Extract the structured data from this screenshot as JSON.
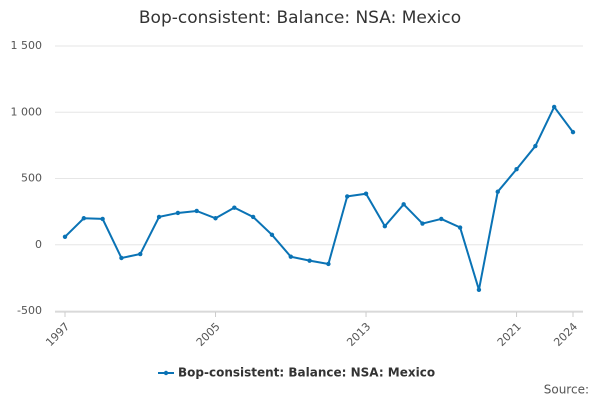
{
  "chart_data": {
    "type": "line",
    "title": "Bop-consistent: Balance: NSA: Mexico",
    "x": [
      1997,
      1998,
      1999,
      2000,
      2001,
      2002,
      2003,
      2004,
      2005,
      2006,
      2007,
      2008,
      2009,
      2010,
      2011,
      2012,
      2013,
      2014,
      2015,
      2016,
      2017,
      2018,
      2019,
      2020,
      2021,
      2022,
      2023,
      2024
    ],
    "series": [
      {
        "name": "Bop-consistent: Balance: NSA: Mexico",
        "color": "#0a73b5",
        "values": [
          60,
          200,
          195,
          -100,
          -70,
          210,
          240,
          255,
          200,
          280,
          210,
          75,
          -90,
          -120,
          -145,
          365,
          385,
          140,
          305,
          160,
          195,
          130,
          -340,
          400,
          570,
          745,
          1040,
          850
        ]
      }
    ],
    "xlim": [
      1997,
      2024
    ],
    "xticks": [
      1997,
      2005,
      2013,
      2021,
      2024
    ],
    "ylim": [
      -500,
      1500
    ],
    "yticks": [
      -500,
      0,
      500,
      {
        "value": 1000,
        "label": "1 000"
      },
      {
        "value": 1500,
        "label": "1 500"
      }
    ],
    "grid": true,
    "legend": "bottom",
    "source": "Source:"
  }
}
